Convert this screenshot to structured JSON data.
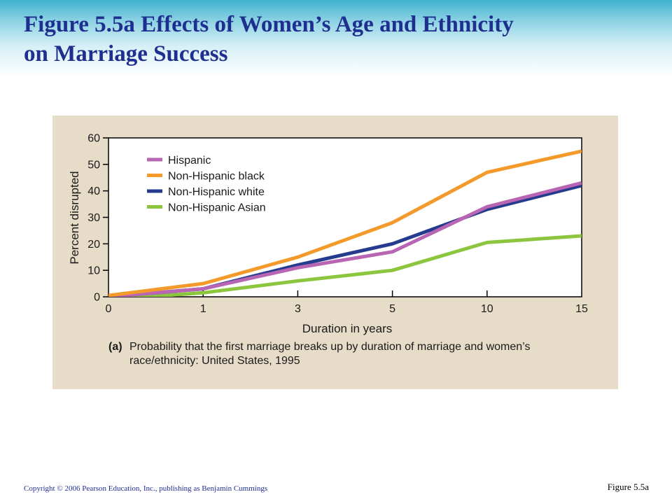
{
  "slide": {
    "title_line1": "Figure 5.5a  Effects of Women’s Age and Ethnicity",
    "title_line2": "on Marriage Success",
    "caption_tag": "(a)",
    "caption_text": "Probability that the first marriage breaks up by duration of marriage and women’s race/ethnicity: United States, 1995",
    "copyright": "Copyright © 2006 Pearson Education, Inc., publishing as Benjamin Cummings",
    "figure_ref": "Figure 5.5a"
  },
  "colors": {
    "title": "#1f2f8f",
    "panel_background": "#e6dcc8",
    "plot_background": "#ffffff"
  },
  "chart_data": {
    "type": "line",
    "title": "",
    "xlabel": "Duration in years",
    "ylabel": "Percent disrupted",
    "x": [
      0,
      1,
      3,
      5,
      10,
      15
    ],
    "x_tick_labels": [
      "0",
      "1",
      "3",
      "5",
      "10",
      "15"
    ],
    "x_axis_spacing": "categorical",
    "ylim": [
      0,
      60
    ],
    "y_ticks": [
      0,
      10,
      20,
      30,
      40,
      50,
      60
    ],
    "y_tick_labels": [
      "0",
      "10",
      "20",
      "30",
      "40",
      "50",
      "60"
    ],
    "grid": false,
    "legend_position": "top-left",
    "series": [
      {
        "name": "Hispanic",
        "color": "#b865b3",
        "values": [
          0,
          3,
          11,
          17,
          34,
          43
        ]
      },
      {
        "name": "Non-Hispanic black",
        "color": "#f39a2b",
        "values": [
          0.5,
          5,
          15,
          28,
          47,
          55
        ]
      },
      {
        "name": "Non-Hispanic white",
        "color": "#253b8e",
        "values": [
          0,
          3,
          12,
          20,
          33,
          42
        ]
      },
      {
        "name": "Non-Hispanic Asian",
        "color": "#8cc63e",
        "values": [
          -1,
          1.5,
          6,
          10,
          20.5,
          23
        ]
      }
    ]
  }
}
